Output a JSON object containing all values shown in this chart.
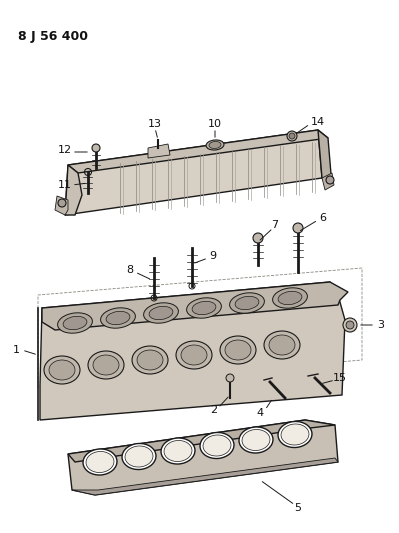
{
  "title": "8 J 56 400",
  "bg_color": "#ffffff",
  "line_color": "#1a1a1a",
  "label_color": "#111111",
  "fill_light": "#e8e4dc",
  "fill_mid": "#d0c8b8",
  "fill_dark": "#b8b0a0"
}
